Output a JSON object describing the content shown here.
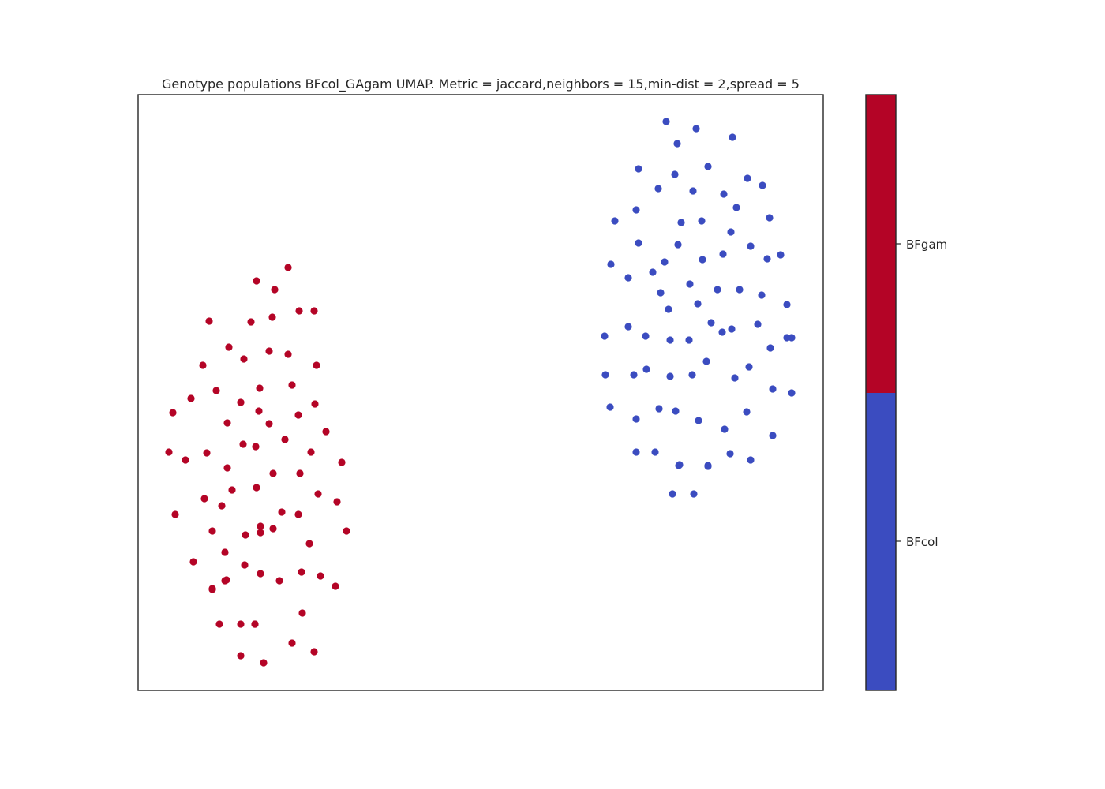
{
  "chart_data": {
    "type": "scatter",
    "title": "Genotype populations BFcol_GAgam UMAP. Metric = jaccard,neighbors = 15,min-dist = 2,spread = 5",
    "xlabel": "",
    "ylabel": "",
    "xlim": [
      0,
      868
    ],
    "ylim": [
      0,
      755
    ],
    "grid": false,
    "axis_ticks": false,
    "colors": {
      "BFgam": "#b40426",
      "BFcol": "#3b4cc0",
      "frame": "#262626"
    },
    "colorbar": {
      "labels": [
        "BFgam",
        "BFcol"
      ],
      "colors": [
        "#b40426",
        "#3b4cc0"
      ]
    },
    "series": [
      {
        "name": "BFgam",
        "color": "#b40426",
        "points": [
          [
            190,
            536
          ],
          [
            150,
            519
          ],
          [
            173,
            508
          ],
          [
            90,
            468
          ],
          [
            143,
            467
          ],
          [
            170,
            473
          ],
          [
            204,
            481
          ],
          [
            223,
            481
          ],
          [
            115,
            435
          ],
          [
            166,
            430
          ],
          [
            134,
            420
          ],
          [
            190,
            426
          ],
          [
            82,
            412
          ],
          [
            226,
            412
          ],
          [
            99,
            380
          ],
          [
            154,
            383
          ],
          [
            195,
            387
          ],
          [
            67,
            370
          ],
          [
            130,
            365
          ],
          [
            224,
            363
          ],
          [
            44,
            352
          ],
          [
            153,
            354
          ],
          [
            113,
            339
          ],
          [
            166,
            338
          ],
          [
            203,
            349
          ],
          [
            186,
            318
          ],
          [
            238,
            328
          ],
          [
            133,
            312
          ],
          [
            149,
            309
          ],
          [
            39,
            302
          ],
          [
            60,
            292
          ],
          [
            87,
            301
          ],
          [
            219,
            302
          ],
          [
            113,
            282
          ],
          [
            258,
            289
          ],
          [
            171,
            275
          ],
          [
            205,
            275
          ],
          [
            119,
            254
          ],
          [
            150,
            257
          ],
          [
            84,
            243
          ],
          [
            106,
            234
          ],
          [
            228,
            249
          ],
          [
            252,
            239
          ],
          [
            182,
            226
          ],
          [
            47,
            223
          ],
          [
            203,
            223
          ],
          [
            94,
            202
          ],
          [
            155,
            208
          ],
          [
            136,
            197
          ],
          [
            171,
            205
          ],
          [
            264,
            202
          ],
          [
            217,
            186
          ],
          [
            70,
            163
          ],
          [
            110,
            175
          ],
          [
            135,
            159
          ],
          [
            155,
            200
          ],
          [
            110,
            139
          ],
          [
            155,
            148
          ],
          [
            207,
            150
          ],
          [
            231,
            145
          ],
          [
            179,
            139
          ],
          [
            112,
            140
          ],
          [
            250,
            132
          ],
          [
            94,
            129
          ],
          [
            94,
            128
          ],
          [
            130,
            84
          ],
          [
            148,
            84
          ],
          [
            208,
            98
          ],
          [
            103,
            84
          ],
          [
            195,
            60
          ],
          [
            130,
            44
          ],
          [
            223,
            49
          ],
          [
            159,
            35
          ],
          [
            148,
            84
          ]
        ]
      },
      {
        "name": "BFcol",
        "color": "#3b4cc0",
        "points": [
          [
            669,
            721
          ],
          [
            707,
            712
          ],
          [
            683,
            693
          ],
          [
            753,
            701
          ],
          [
            634,
            661
          ],
          [
            680,
            654
          ],
          [
            722,
            664
          ],
          [
            659,
            636
          ],
          [
            703,
            633
          ],
          [
            742,
            629
          ],
          [
            772,
            649
          ],
          [
            791,
            640
          ],
          [
            631,
            609
          ],
          [
            758,
            612
          ],
          [
            800,
            599
          ],
          [
            604,
            595
          ],
          [
            688,
            593
          ],
          [
            714,
            595
          ],
          [
            751,
            581
          ],
          [
            634,
            567
          ],
          [
            684,
            565
          ],
          [
            776,
            563
          ],
          [
            715,
            546
          ],
          [
            741,
            553
          ],
          [
            797,
            547
          ],
          [
            814,
            552
          ],
          [
            599,
            540
          ],
          [
            621,
            523
          ],
          [
            652,
            530
          ],
          [
            667,
            543
          ],
          [
            699,
            515
          ],
          [
            734,
            508
          ],
          [
            762,
            508
          ],
          [
            662,
            504
          ],
          [
            709,
            490
          ],
          [
            790,
            501
          ],
          [
            822,
            489
          ],
          [
            672,
            483
          ],
          [
            726,
            466
          ],
          [
            822,
            447
          ],
          [
            621,
            461
          ],
          [
            643,
            449
          ],
          [
            674,
            444
          ],
          [
            698,
            444
          ],
          [
            740,
            454
          ],
          [
            752,
            458
          ],
          [
            785,
            464
          ],
          [
            591,
            449
          ],
          [
            801,
            434
          ],
          [
            828,
            447
          ],
          [
            720,
            417
          ],
          [
            774,
            410
          ],
          [
            644,
            407
          ],
          [
            674,
            398
          ],
          [
            702,
            400
          ],
          [
            628,
            400
          ],
          [
            592,
            400
          ],
          [
            756,
            396
          ],
          [
            804,
            382
          ],
          [
            828,
            377
          ],
          [
            598,
            359
          ],
          [
            631,
            344
          ],
          [
            660,
            357
          ],
          [
            681,
            354
          ],
          [
            710,
            342
          ],
          [
            743,
            331
          ],
          [
            771,
            353
          ],
          [
            804,
            323
          ],
          [
            655,
            302
          ],
          [
            722,
            285
          ],
          [
            685,
            285
          ],
          [
            750,
            300
          ],
          [
            776,
            292
          ],
          [
            631,
            302
          ],
          [
            677,
            249
          ],
          [
            704,
            249
          ],
          [
            686,
            286
          ],
          [
            722,
            284
          ]
        ]
      }
    ]
  }
}
